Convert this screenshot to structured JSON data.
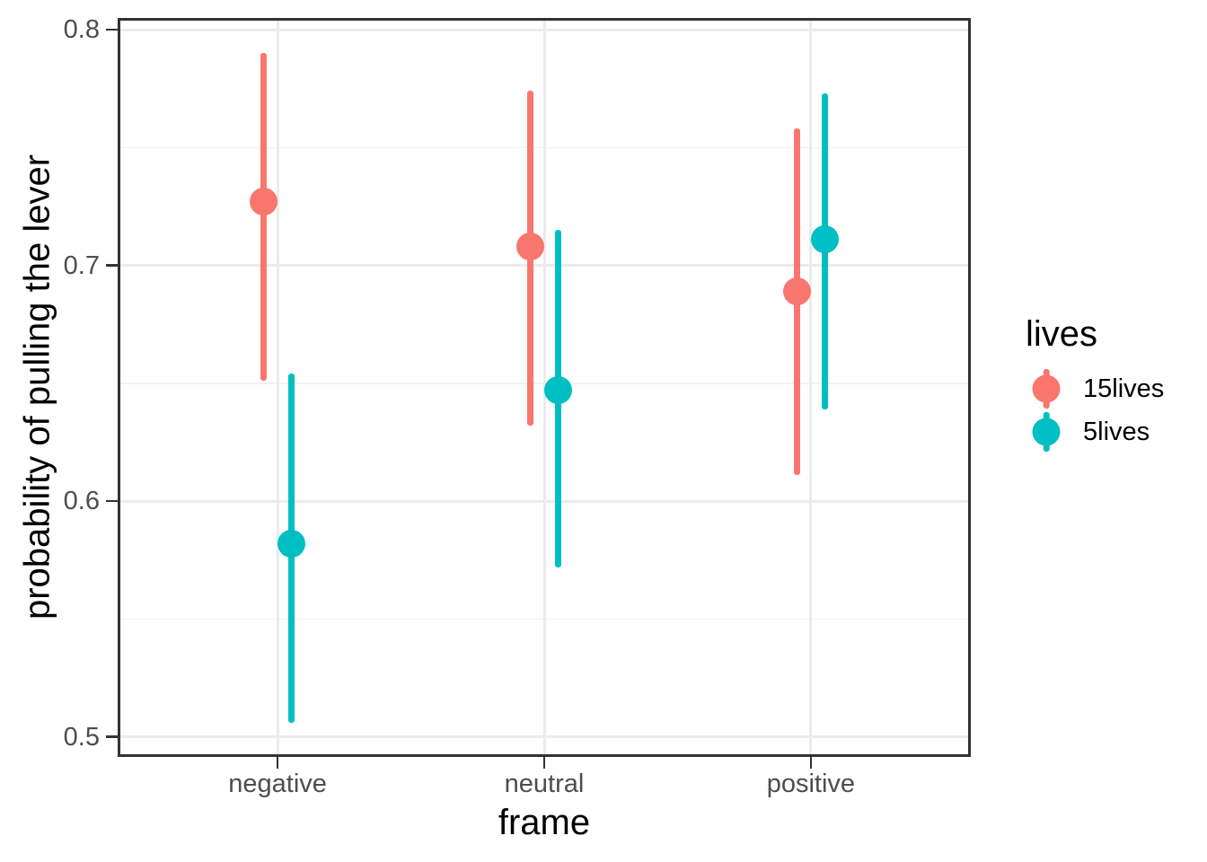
{
  "chart_data": {
    "type": "pointrange",
    "title": "",
    "xlabel": "frame",
    "ylabel": "probability of pulling the lever",
    "categories": [
      "negative",
      "neutral",
      "positive"
    ],
    "series": [
      {
        "name": "15lives",
        "color": "#F8766D",
        "estimates": [
          0.727,
          0.708,
          0.689
        ],
        "lower": [
          0.651,
          0.632,
          0.611
        ],
        "upper": [
          0.79,
          0.774,
          0.758
        ]
      },
      {
        "name": "5lives",
        "color": "#00BFC4",
        "estimates": [
          0.582,
          0.647,
          0.711
        ],
        "lower": [
          0.506,
          0.572,
          0.639
        ],
        "upper": [
          0.654,
          0.715,
          0.773
        ]
      }
    ],
    "y_tick_labels": [
      "0.5",
      "0.6",
      "0.7",
      "0.8"
    ],
    "y_tick_values": [
      0.5,
      0.6,
      0.7,
      0.8
    ],
    "y_minor_values": [
      0.55,
      0.65,
      0.75
    ],
    "ylim": [
      0.4915,
      0.805
    ],
    "grid": true,
    "legend": {
      "title": "lives",
      "position": "right",
      "entries": [
        "15lives",
        "5lives"
      ]
    },
    "colors": {
      "grid_major": "#EBEBEB",
      "grid_minor": "#F2F2F2",
      "panel_border": "#333333",
      "tick_mark": "#333333",
      "tick_label": "#4D4D4D",
      "axis_title": "#000000",
      "background": "#FFFFFF"
    }
  }
}
